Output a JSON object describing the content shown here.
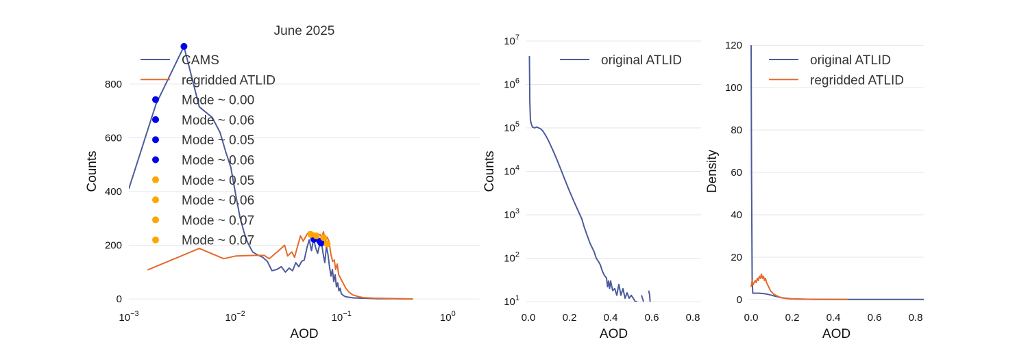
{
  "colors": {
    "cams": "#4c5b9c",
    "atlid": "#e5692b",
    "mode_cams": "#0000ee",
    "mode_atlid": "#ffa500",
    "grid": "#e6e6e6"
  },
  "chart_data": [
    {
      "type": "line",
      "title": "June 2025",
      "xlabel": "AOD",
      "ylabel": "Counts",
      "xscale": "log",
      "xlim": [
        0.001,
        2.0
      ],
      "ylim": [
        -10,
        960
      ],
      "grid": "horizontal",
      "legend_position": "top-left",
      "x_tick_labels": [
        "10^-3",
        "10^-2",
        "10^-1",
        "10^0"
      ],
      "y_tick_labels": [
        "0",
        "200",
        "400",
        "600",
        "800"
      ],
      "series": [
        {
          "name": "CAMS",
          "color": "cams",
          "x": [
            0.001,
            0.0018,
            0.0033,
            0.0046,
            0.0061,
            0.0072,
            0.0082,
            0.0091,
            0.0101,
            0.0111,
            0.0121,
            0.0131,
            0.0146,
            0.0161,
            0.0182,
            0.0201,
            0.0222,
            0.0247,
            0.0272,
            0.0297,
            0.0322,
            0.0347,
            0.0372,
            0.0397,
            0.0422,
            0.0447,
            0.0473,
            0.0498,
            0.0523,
            0.0548,
            0.0572,
            0.0597,
            0.0622,
            0.0647,
            0.0672,
            0.0697,
            0.0722,
            0.0747,
            0.0772,
            0.0797,
            0.0822,
            0.0847,
            0.0872,
            0.0897,
            0.0922,
            0.0947,
            0.0972,
            0.0997,
            0.105,
            0.11,
            0.12,
            0.13,
            0.15,
            0.18,
            0.22,
            0.3,
            0.47
          ],
          "y": [
            410,
            725,
            940,
            715,
            675,
            620,
            545,
            490,
            390,
            305,
            250,
            210,
            175,
            165,
            155,
            140,
            105,
            110,
            120,
            100,
            115,
            105,
            135,
            120,
            140,
            145,
            190,
            220,
            180,
            225,
            190,
            170,
            200,
            215,
            170,
            135,
            195,
            165,
            120,
            85,
            110,
            65,
            90,
            45,
            60,
            30,
            40,
            20,
            12,
            8,
            6,
            4,
            3,
            2,
            1,
            1,
            0
          ]
        },
        {
          "name": "regridded ATLID",
          "color": "atlid",
          "x": [
            0.0015,
            0.0046,
            0.0078,
            0.0102,
            0.0151,
            0.0188,
            0.0209,
            0.0257,
            0.0292,
            0.0312,
            0.0342,
            0.0362,
            0.0389,
            0.0412,
            0.0437,
            0.0473,
            0.0498,
            0.0528,
            0.0553,
            0.0578,
            0.0603,
            0.0628,
            0.0653,
            0.0678,
            0.0703,
            0.0733,
            0.0763,
            0.0797,
            0.0827,
            0.0857,
            0.0882,
            0.0912,
            0.0942,
            0.0972,
            0.1002,
            0.105,
            0.11,
            0.118,
            0.128,
            0.14,
            0.16,
            0.2,
            0.26,
            0.36,
            0.47
          ],
          "y": [
            108,
            188,
            150,
            160,
            162,
            162,
            150,
            180,
            200,
            160,
            175,
            155,
            200,
            235,
            215,
            240,
            250,
            215,
            245,
            220,
            235,
            240,
            230,
            250,
            215,
            230,
            215,
            165,
            140,
            145,
            110,
            130,
            90,
            80,
            70,
            55,
            40,
            25,
            15,
            10,
            5,
            3,
            2,
            1,
            0
          ]
        }
      ],
      "mode_points": [
        {
          "label": "Mode ~ 0.00",
          "color": "mode_cams",
          "x": 0.0033,
          "y": 940
        },
        {
          "label": "Mode ~ 0.06",
          "color": "mode_cams",
          "x": 0.055,
          "y": 222
        },
        {
          "label": "Mode ~ 0.05",
          "color": "mode_cams",
          "x": 0.0625,
          "y": 215
        },
        {
          "label": "Mode ~ 0.06",
          "color": "mode_cams",
          "x": 0.0645,
          "y": 208
        },
        {
          "label": "Mode ~ 0.05",
          "color": "mode_atlid",
          "x": 0.0515,
          "y": 240
        },
        {
          "label": "Mode ~ 0.06",
          "color": "mode_atlid",
          "x": 0.058,
          "y": 235
        },
        {
          "label": "Mode ~ 0.07",
          "color": "mode_atlid",
          "x": 0.068,
          "y": 228
        },
        {
          "label": "Mode ~ 0.07",
          "color": "mode_atlid",
          "x": 0.0735,
          "y": 205
        }
      ]
    },
    {
      "type": "line",
      "title": "",
      "xlabel": "AOD",
      "ylabel": "Counts",
      "yscale": "log",
      "xlim": [
        -0.01,
        0.84
      ],
      "ylim": [
        10,
        10000000
      ],
      "grid": "horizontal",
      "legend_position": "top-right",
      "x_tick_labels": [
        "0.0",
        "0.2",
        "0.4",
        "0.6",
        "0.8"
      ],
      "y_tick_labels": [
        "10^1",
        "10^2",
        "10^3",
        "10^4",
        "10^5",
        "10^6",
        "10^7"
      ],
      "series": [
        {
          "name": "original ATLID",
          "color": "cams",
          "segments": [
            {
              "x": [
                0.005,
                0.007,
                0.01,
                0.015,
                0.02,
                0.03,
                0.04,
                0.05,
                0.06,
                0.07,
                0.08,
                0.09,
                0.1,
                0.12,
                0.14,
                0.16,
                0.18,
                0.2,
                0.22,
                0.24,
                0.26,
                0.27,
                0.28,
                0.3,
                0.32,
                0.33,
                0.34,
                0.35,
                0.36,
                0.37,
                0.38,
                0.385,
                0.39,
                0.395,
                0.4,
                0.41,
                0.42,
                0.43,
                0.44,
                0.45,
                0.46,
                0.47,
                0.48,
                0.49,
                0.5,
                0.51,
                0.52,
                0.53
              ],
              "y": [
                4500000,
                400000,
                150000,
                120000,
                105000,
                100000,
                105000,
                100000,
                95000,
                85000,
                72000,
                60000,
                48000,
                30000,
                18000,
                10500,
                6000,
                3500,
                2100,
                1300,
                800,
                550,
                400,
                220,
                140,
                100,
                85,
                70,
                50,
                40,
                35,
                22,
                30,
                20,
                30,
                18,
                20,
                14,
                25,
                14,
                20,
                12,
                16,
                12,
                14,
                12,
                10,
                10
              ]
            },
            {
              "x": [
                0.55,
                0.56
              ],
              "y": [
                14,
                10
              ]
            },
            {
              "x": [
                0.585,
                0.59,
                0.592
              ],
              "y": [
                18,
                14,
                10
              ]
            }
          ]
        }
      ]
    },
    {
      "type": "line",
      "title": "",
      "xlabel": "AOD",
      "ylabel": "Density",
      "xlim": [
        -0.01,
        0.84
      ],
      "ylim": [
        -1,
        122
      ],
      "grid": "horizontal",
      "legend_position": "top-left",
      "x_tick_labels": [
        "0.0",
        "0.2",
        "0.4",
        "0.6",
        "0.8"
      ],
      "y_tick_labels": [
        "0",
        "20",
        "40",
        "60",
        "80",
        "100",
        "120"
      ],
      "series": [
        {
          "name": "original ATLID",
          "color": "cams",
          "x": [
            0.0,
            0.002,
            0.005,
            0.008,
            0.02,
            0.04,
            0.06,
            0.08,
            0.1,
            0.12,
            0.15,
            0.2,
            0.3,
            0.5,
            0.84
          ],
          "y": [
            120,
            60,
            10,
            3,
            3,
            3,
            2.8,
            2.5,
            2,
            1.5,
            0.8,
            0.3,
            0.1,
            0.05,
            0.02
          ],
          "clip_to_axes": true
        },
        {
          "name": "regridded ATLID",
          "color": "atlid",
          "x": [
            0.0,
            0.005,
            0.01,
            0.015,
            0.02,
            0.025,
            0.03,
            0.035,
            0.04,
            0.045,
            0.05,
            0.055,
            0.06,
            0.065,
            0.07,
            0.075,
            0.08,
            0.085,
            0.09,
            0.095,
            0.1,
            0.11,
            0.12,
            0.13,
            0.15,
            0.18,
            0.22,
            0.3,
            0.47
          ],
          "y": [
            6,
            9,
            7,
            8,
            9,
            8,
            10,
            9,
            11,
            10,
            12,
            10,
            11,
            9,
            10,
            8,
            7,
            6,
            5,
            4,
            3.5,
            2.5,
            2,
            1.5,
            0.8,
            0.4,
            0.2,
            0.1,
            0
          ]
        }
      ]
    }
  ]
}
